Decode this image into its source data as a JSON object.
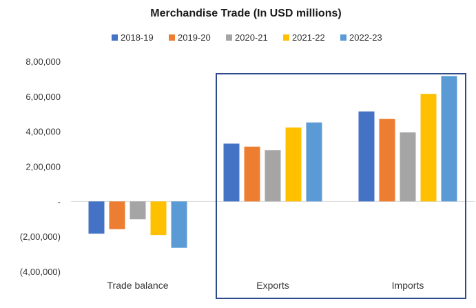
{
  "chart_data": {
    "type": "bar",
    "title": "Merchandise Trade (In USD millions)",
    "categories": [
      "Trade balance",
      "Exports",
      "Imports"
    ],
    "series": [
      {
        "name": "2018-19",
        "color": "#4472C4",
        "values": [
          -184000,
          330000,
          514000
        ]
      },
      {
        "name": "2019-20",
        "color": "#ED7D31",
        "values": [
          -158000,
          313000,
          471000
        ]
      },
      {
        "name": "2020-21",
        "color": "#A5A5A5",
        "values": [
          -102000,
          292000,
          394000
        ]
      },
      {
        "name": "2021-22",
        "color": "#FFC000",
        "values": [
          -192000,
          422000,
          614000
        ]
      },
      {
        "name": "2022-23",
        "color": "#5B9BD5",
        "values": [
          -265000,
          451000,
          716000
        ]
      }
    ],
    "ylim": [
      -400000,
      800000
    ],
    "yticks": [
      {
        "value": 800000,
        "label": "8,00,000"
      },
      {
        "value": 600000,
        "label": "6,00,000"
      },
      {
        "value": 400000,
        "label": "4,00,000"
      },
      {
        "value": 200000,
        "label": "2,00,000"
      },
      {
        "value": 0,
        "label": "-"
      },
      {
        "value": -200000,
        "label": "(2,00,000)"
      },
      {
        "value": -400000,
        "label": "(4,00,000)"
      }
    ],
    "legend_position": "top",
    "grid": false,
    "highlight_box_color": "#2F4A8A"
  }
}
